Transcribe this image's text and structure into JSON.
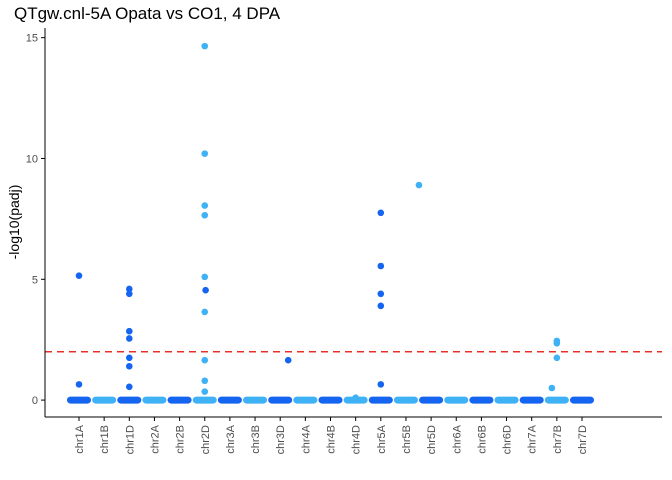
{
  "chart_data": {
    "type": "scatter",
    "title": "QTgw.cnl-5A Opata vs CO1, 4 DPA",
    "xlabel": "",
    "ylabel": "-log10(padj)",
    "ylim": [
      -0.7,
      15.4
    ],
    "yticks": [
      0,
      5,
      10,
      15
    ],
    "grid": false,
    "legend": "none",
    "categories": [
      "chr1A",
      "chr1B",
      "chr1D",
      "chr2A",
      "chr2B",
      "chr2D",
      "chr3A",
      "chr3B",
      "chr3D",
      "chr4A",
      "chr4B",
      "chr4D",
      "chr5A",
      "chr5B",
      "chr5D",
      "chr6A",
      "chr6B",
      "chr6D",
      "chr7A",
      "chr7B",
      "chr7D"
    ],
    "colors": {
      "dark": "#1565f0",
      "light": "#3fb1f5",
      "threshold": "#e8302a"
    },
    "category_colors": [
      "dark",
      "light",
      "dark",
      "light",
      "dark",
      "light",
      "dark",
      "light",
      "dark",
      "light",
      "dark",
      "light",
      "dark",
      "light",
      "dark",
      "light",
      "dark",
      "light",
      "dark",
      "light",
      "dark"
    ],
    "threshold": 2,
    "baseline_value": 0,
    "points": [
      {
        "chr": "chr1A",
        "y": 5.15
      },
      {
        "chr": "chr1A",
        "y": 0.65
      },
      {
        "chr": "chr1D",
        "y": 4.6
      },
      {
        "chr": "chr1D",
        "y": 4.4
      },
      {
        "chr": "chr1D",
        "y": 2.85
      },
      {
        "chr": "chr1D",
        "y": 2.55
      },
      {
        "chr": "chr1D",
        "y": 1.75
      },
      {
        "chr": "chr1D",
        "y": 1.4
      },
      {
        "chr": "chr1D",
        "y": 0.55
      },
      {
        "chr": "chr2B",
        "y": 4.55
      },
      {
        "chr": "chr2D",
        "y": 14.65
      },
      {
        "chr": "chr2D",
        "y": 10.2
      },
      {
        "chr": "chr2D",
        "y": 8.05
      },
      {
        "chr": "chr2D",
        "y": 7.65
      },
      {
        "chr": "chr2D",
        "y": 5.1
      },
      {
        "chr": "chr2D",
        "y": 3.65
      },
      {
        "chr": "chr2D",
        "y": 1.65
      },
      {
        "chr": "chr2D",
        "y": 0.8
      },
      {
        "chr": "chr2D",
        "y": 0.35
      },
      {
        "chr": "chr3D",
        "y": 1.65
      },
      {
        "chr": "chr4D",
        "y": 0.1
      },
      {
        "chr": "chr5A",
        "y": 7.75
      },
      {
        "chr": "chr5A",
        "y": 5.55
      },
      {
        "chr": "chr5A",
        "y": 4.4
      },
      {
        "chr": "chr5A",
        "y": 3.9
      },
      {
        "chr": "chr5A",
        "y": 0.65
      },
      {
        "chr": "chr5B",
        "y": 8.9
      },
      {
        "chr": "chr7B",
        "y": 2.45
      },
      {
        "chr": "chr7B",
        "y": 2.35
      },
      {
        "chr": "chr7B",
        "y": 1.75
      },
      {
        "chr": "chr7B",
        "y": 0.5
      }
    ]
  }
}
